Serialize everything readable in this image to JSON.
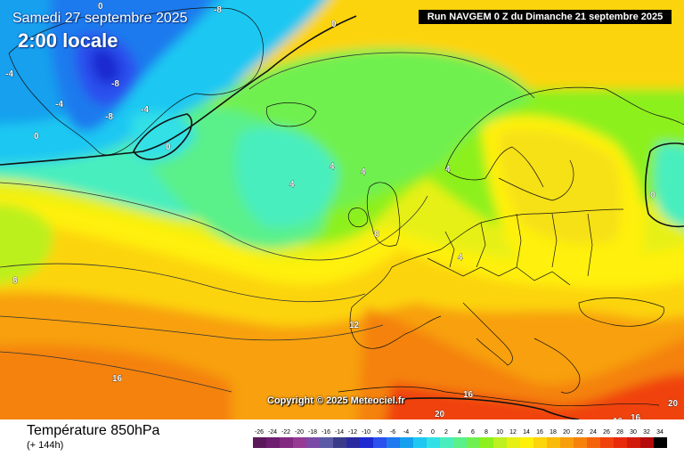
{
  "header": {
    "date": "Samedi 27 septembre 2025",
    "time": "2:00 locale",
    "run": "Run NAVGEM 0 Z du Dimanche 21 septembre 2025"
  },
  "footer": {
    "copyright": "Copyright © 2025 Meteociel.fr",
    "variable": "Température 850hPa",
    "lead_time": "(+ 144h)"
  },
  "map_labels": [
    "-8",
    "-4",
    "0",
    "-8",
    "-8",
    "-4",
    "-4",
    "0",
    "0",
    "0",
    "4",
    "4",
    "4",
    "4",
    "4",
    "0",
    "8",
    "8",
    "12",
    "16",
    "16",
    "16",
    "16",
    "20",
    "20"
  ],
  "legend": {
    "ticks": [
      "-26",
      "-24",
      "-22",
      "-20",
      "-18",
      "-16",
      "-14",
      "-12",
      "-10",
      "-8",
      "-6",
      "-4",
      "-2",
      "0",
      "2",
      "4",
      "6",
      "8",
      "10",
      "12",
      "14",
      "16",
      "18",
      "20",
      "22",
      "24",
      "26",
      "28",
      "30",
      "32",
      "34"
    ],
    "colors": [
      "#5a1a5a",
      "#6e1e6e",
      "#822a82",
      "#963a96",
      "#7a4aa6",
      "#5a5aa6",
      "#3a3a8a",
      "#2a2aa0",
      "#1e2ad0",
      "#2a50ee",
      "#1e7aee",
      "#14a0ee",
      "#1ec8f2",
      "#32e0e6",
      "#4aeebe",
      "#5af08a",
      "#70f050",
      "#8cf01e",
      "#bcf01e",
      "#e6f014",
      "#fff00a",
      "#fcd40a",
      "#faba0a",
      "#f89e0a",
      "#f6820a",
      "#f4620a",
      "#f0420a",
      "#e82a0a",
      "#d21a0a",
      "#b40a0a",
      "#000000"
    ]
  }
}
